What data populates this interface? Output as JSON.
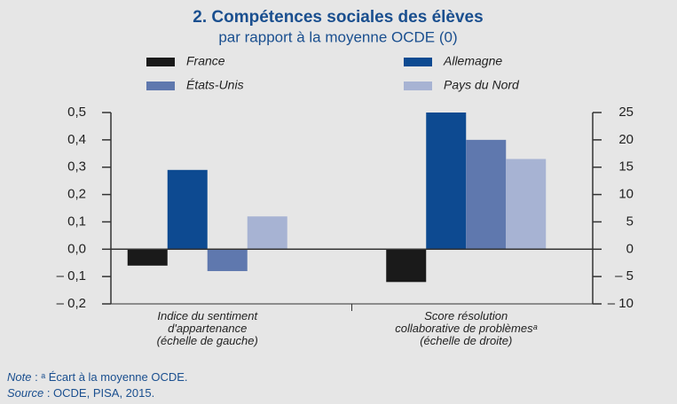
{
  "chart_data": {
    "type": "bar",
    "title": "2. Compétences sociales des élèves",
    "subtitle": "par rapport à la moyenne OCDE (0)",
    "categories": [
      "Indice du sentiment\nd'appartenance\n(échelle de gauche)",
      "Score résolution\ncollaborative  de problèmesᵃ\n(échelle de droite)"
    ],
    "category_axes": [
      "y",
      "y2"
    ],
    "series": [
      {
        "name": "France",
        "color": "#1a1a1a",
        "values": [
          -0.06,
          -6
        ]
      },
      {
        "name": "Allemagne",
        "color": "#0d4a91",
        "values": [
          0.29,
          25
        ]
      },
      {
        "name": "États-Unis",
        "color": "#5f78ae",
        "values": [
          -0.08,
          20
        ]
      },
      {
        "name": "Pays du Nord",
        "color": "#a7b3d3",
        "values": [
          0.12,
          16.5
        ]
      }
    ],
    "ylim": [
      -0.2,
      0.5
    ],
    "yticks": [
      {
        "value": 0.5,
        "label": "0,5"
      },
      {
        "value": 0.4,
        "label": "0,4"
      },
      {
        "value": 0.3,
        "label": "0,3"
      },
      {
        "value": 0.2,
        "label": "0,2"
      },
      {
        "value": 0.1,
        "label": "0,1"
      },
      {
        "value": 0.0,
        "label": "0,0"
      },
      {
        "value": -0.1,
        "label": "– 0,1"
      },
      {
        "value": -0.2,
        "label": "– 0,2"
      }
    ],
    "y2lim": [
      -10,
      25
    ],
    "y2ticks": [
      25,
      20,
      15,
      10,
      5,
      0,
      {
        "value": -5,
        "label": "– 5"
      },
      {
        "value": -10,
        "label": "– 10"
      }
    ],
    "note_label": "Note",
    "note_text": " : ᵃ Écart à la moyenne OCDE.",
    "source_label": "Source",
    "source_text": " : OCDE, PISA, 2015."
  }
}
